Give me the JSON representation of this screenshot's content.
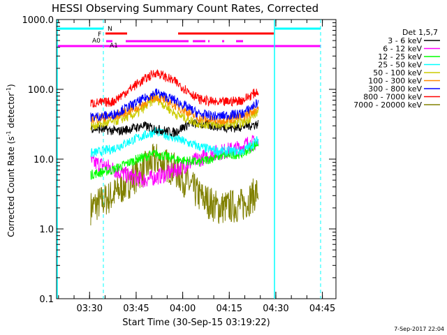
{
  "chart_data": {
    "type": "line",
    "title": "HESSI Observing Summary Count Rates, Corrected",
    "xlabel": "Start Time (30-Sep-15 03:19:22)",
    "ylabel_prefix": "Corrected Count Rate (s",
    "ylabel_sup1": "-1",
    "ylabel_mid": " detector",
    "ylabel_sup2": "-1",
    "ylabel_suffix": ")",
    "timestamp": "7-Sep-2017 22:04",
    "x_ticks": [
      "03:30",
      "03:45",
      "04:00",
      "04:15",
      "04:30",
      "04:45"
    ],
    "y_ticks": [
      "0.1",
      "1.0",
      "10.0",
      "100.0",
      "1000.0"
    ],
    "ylim": [
      0.1,
      1000
    ],
    "y_scale": "log",
    "xlim_minutes_from_0319": [
      0,
      90
    ],
    "legend_title": "Det 1,5,7",
    "legend_placement": "right",
    "flag_labels": [
      "N",
      "F",
      "A0",
      "A1"
    ],
    "series": [
      {
        "name": "3 - 6 keV",
        "color": "#000000",
        "values": [
          [
            11,
            28
          ],
          [
            20,
            25
          ],
          [
            28,
            30
          ],
          [
            32,
            27
          ],
          [
            38,
            24
          ],
          [
            43,
            33
          ],
          [
            50,
            30
          ],
          [
            57,
            28
          ],
          [
            65,
            32
          ]
        ]
      },
      {
        "name": "6 - 12 keV",
        "color": "#ff00ff",
        "values": [
          [
            11,
            9
          ],
          [
            16,
            8
          ],
          [
            22,
            6
          ],
          [
            28,
            5
          ],
          [
            35,
            6
          ],
          [
            41,
            8
          ],
          [
            50,
            12
          ],
          [
            58,
            14
          ],
          [
            62,
            17
          ]
        ]
      },
      {
        "name": "12 - 25 keV",
        "color": "#00ff00",
        "values": [
          [
            11,
            6
          ],
          [
            18,
            7
          ],
          [
            26,
            10
          ],
          [
            32,
            12
          ],
          [
            38,
            10
          ],
          [
            46,
            9
          ],
          [
            52,
            11
          ],
          [
            60,
            12
          ],
          [
            65,
            17
          ]
        ]
      },
      {
        "name": "25 - 50 keV",
        "color": "#00ffff",
        "values": [
          [
            11,
            12
          ],
          [
            18,
            14
          ],
          [
            26,
            20
          ],
          [
            32,
            25
          ],
          [
            38,
            20
          ],
          [
            46,
            15
          ],
          [
            52,
            13
          ],
          [
            60,
            13
          ],
          [
            65,
            19
          ]
        ]
      },
      {
        "name": "50 - 100 keV",
        "color": "#cccc00",
        "values": [
          [
            11,
            30
          ],
          [
            18,
            34
          ],
          [
            26,
            45
          ],
          [
            32,
            75
          ],
          [
            38,
            45
          ],
          [
            46,
            32
          ],
          [
            52,
            31
          ],
          [
            60,
            33
          ],
          [
            65,
            48
          ]
        ]
      },
      {
        "name": "100 - 300 keV",
        "color": "#ff8800",
        "values": [
          [
            11,
            38
          ],
          [
            18,
            40
          ],
          [
            26,
            55
          ],
          [
            32,
            80
          ],
          [
            38,
            60
          ],
          [
            46,
            38
          ],
          [
            52,
            36
          ],
          [
            60,
            40
          ],
          [
            65,
            55
          ]
        ]
      },
      {
        "name": "300 - 800 keV",
        "color": "#0000ff",
        "values": [
          [
            11,
            40
          ],
          [
            18,
            43
          ],
          [
            26,
            65
          ],
          [
            32,
            90
          ],
          [
            38,
            70
          ],
          [
            46,
            44
          ],
          [
            52,
            41
          ],
          [
            60,
            45
          ],
          [
            65,
            65
          ]
        ]
      },
      {
        "name": "800 - 7000 keV",
        "color": "#ff0000",
        "values": [
          [
            11,
            63
          ],
          [
            18,
            66
          ],
          [
            26,
            120
          ],
          [
            32,
            175
          ],
          [
            38,
            130
          ],
          [
            46,
            72
          ],
          [
            52,
            64
          ],
          [
            60,
            70
          ],
          [
            65,
            95
          ]
        ]
      },
      {
        "name": "7000 - 20000 keV",
        "color": "#808000",
        "values": [
          [
            11,
            2
          ],
          [
            18,
            3
          ],
          [
            26,
            6
          ],
          [
            32,
            10
          ],
          [
            38,
            7
          ],
          [
            46,
            3
          ],
          [
            52,
            2
          ],
          [
            60,
            2.2
          ],
          [
            65,
            3.5
          ]
        ]
      }
    ]
  }
}
